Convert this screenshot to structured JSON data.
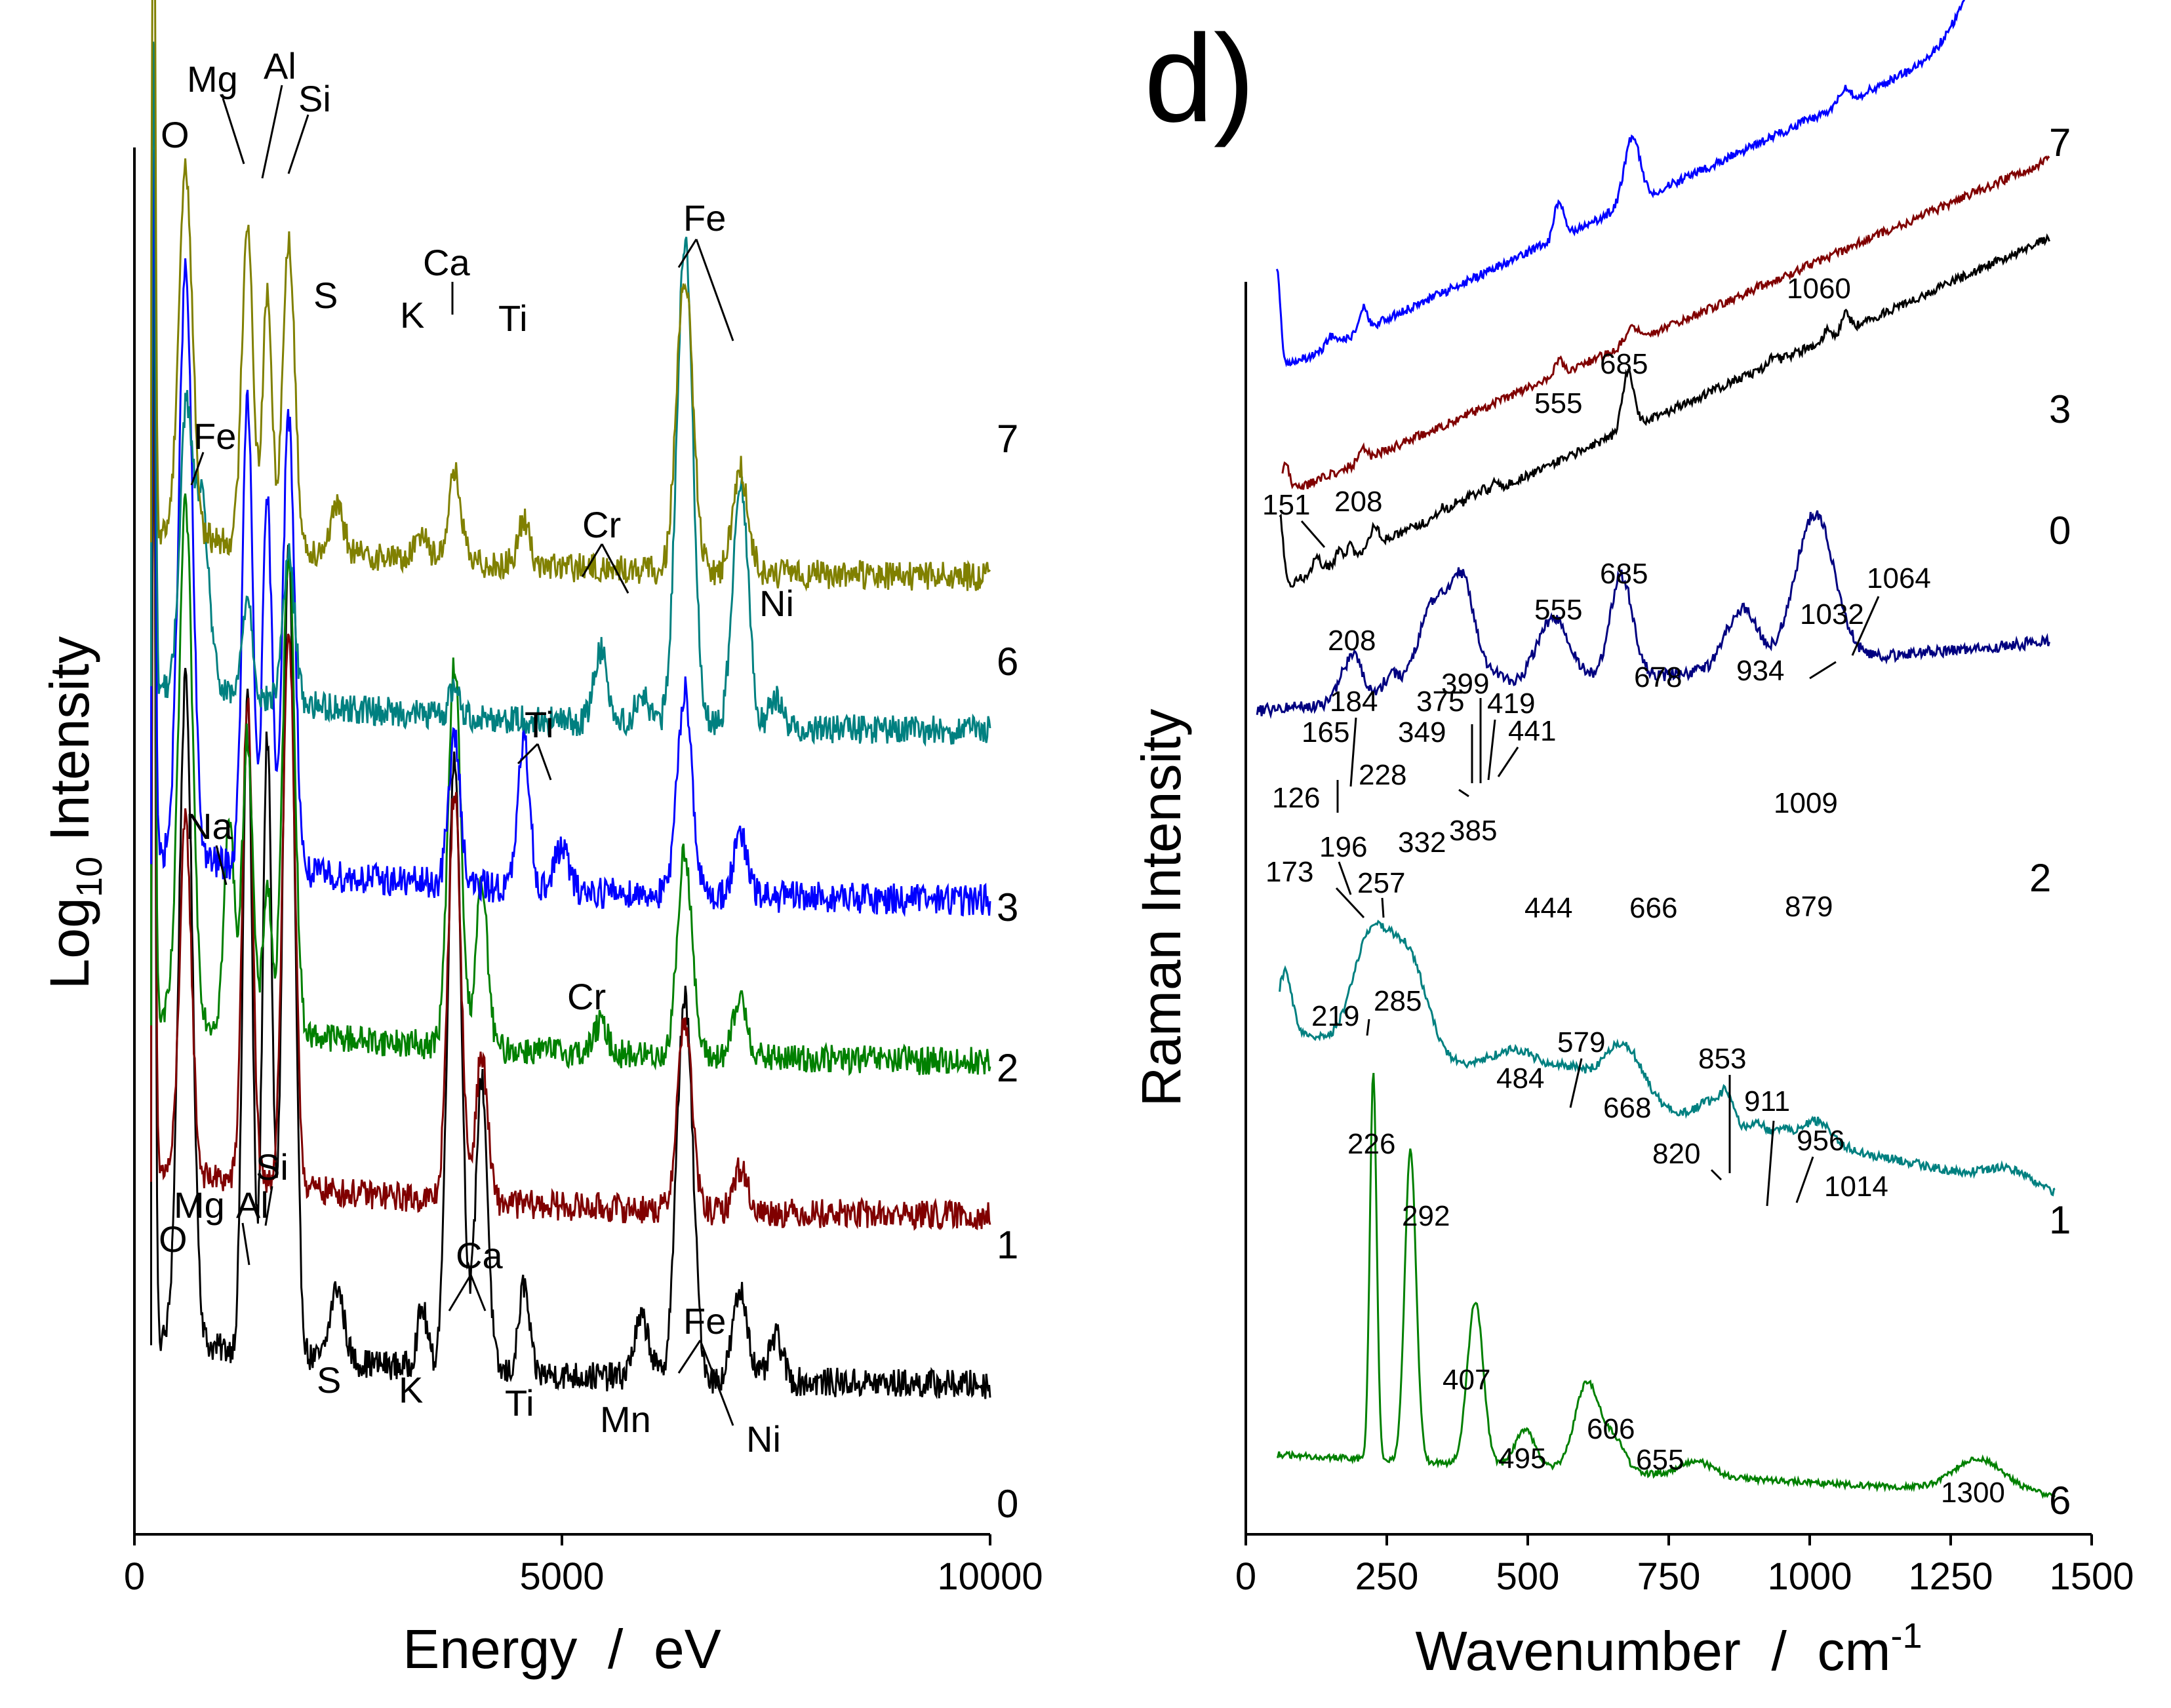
{
  "chart_data": [
    {
      "type": "line",
      "panel_label": "",
      "xlabel": "Energy  /  eV",
      "ylabel_main": "Log",
      "ylabel_sub": "10",
      "ylabel_rest": " Intensity",
      "xlim": [
        0,
        10000
      ],
      "xticks": [
        0,
        5000,
        10000
      ],
      "xtick_labels": [
        "0",
        "5000",
        "10000"
      ],
      "series": [
        {
          "name": "0",
          "color": "#000000",
          "base": 0.1,
          "noise": 0.01,
          "peaks": [
            [
              150,
              0.7,
              20
            ],
            [
              525,
              0.45,
              80
            ],
            [
              1254,
              0.45,
              55
            ],
            [
              1487,
              0.42,
              55
            ],
            [
              1740,
              0.55,
              70
            ],
            [
              2310,
              0.05,
              80
            ],
            [
              3313,
              0.04,
              60
            ],
            [
              3692,
              0.42,
              80
            ],
            [
              4012,
              0.2,
              70
            ],
            [
              4510,
              0.06,
              60
            ],
            [
              5900,
              0.04,
              90
            ],
            [
              6404,
              0.26,
              95
            ],
            [
              7060,
              0.06,
              90
            ],
            [
              7478,
              0.03,
              80
            ]
          ]
        },
        {
          "name": "1",
          "color": "#800000",
          "base": 0.215,
          "noise": 0.01,
          "peaks": [
            [
              150,
              0.55,
              20
            ],
            [
              525,
              0.24,
              70
            ],
            [
              1254,
              0.33,
              60
            ],
            [
              1740,
              0.38,
              70
            ],
            [
              3692,
              0.28,
              75
            ],
            [
              4012,
              0.1,
              70
            ],
            [
              6404,
              0.13,
              85
            ],
            [
              7060,
              0.03,
              80
            ]
          ]
        },
        {
          "name": "2",
          "color": "#008000",
          "base": 0.32,
          "noise": 0.01,
          "peaks": [
            [
              150,
              0.55,
              20
            ],
            [
              525,
              0.35,
              80
            ],
            [
              1041,
              0.14,
              60
            ],
            [
              1254,
              0.2,
              60
            ],
            [
              1487,
              0.1,
              50
            ],
            [
              1740,
              0.33,
              70
            ],
            [
              3692,
              0.26,
              75
            ],
            [
              4012,
              0.11,
              70
            ],
            [
              5415,
              0.02,
              80
            ],
            [
              6404,
              0.14,
              85
            ],
            [
              7060,
              0.04,
              80
            ]
          ]
        },
        {
          "name": "3",
          "color": "#0000ff",
          "base": 0.43,
          "noise": 0.011,
          "peaks": [
            [
              150,
              0.5,
              20
            ],
            [
              525,
              0.4,
              80
            ],
            [
              1254,
              0.32,
              60
            ],
            [
              1487,
              0.25,
              55
            ],
            [
              1740,
              0.31,
              70
            ],
            [
              3692,
              0.1,
              70
            ],
            [
              4510,
              0.1,
              70
            ],
            [
              4952,
              0.03,
              80
            ],
            [
              6404,
              0.14,
              85
            ],
            [
              7060,
              0.04,
              80
            ]
          ]
        },
        {
          "name": "6",
          "color": "#008080",
          "base": 0.545,
          "noise": 0.01,
          "peaks": [
            [
              150,
              0.45,
              20
            ],
            [
              525,
              0.18,
              70
            ],
            [
              710,
              0.13,
              90
            ],
            [
              1254,
              0.07,
              60
            ],
            [
              1740,
              0.1,
              70
            ],
            [
              3692,
              0.02,
              60
            ],
            [
              5415,
              0.05,
              80
            ],
            [
              5900,
              0.02,
              80
            ],
            [
              6404,
              0.33,
              95
            ],
            [
              7060,
              0.17,
              90
            ],
            [
              7478,
              0.02,
              80
            ]
          ]
        },
        {
          "name": "7",
          "color": "#808000",
          "base": 0.65,
          "noise": 0.01,
          "peaks": [
            [
              150,
              0.5,
              20
            ],
            [
              525,
              0.25,
              80
            ],
            [
              1254,
              0.22,
              65
            ],
            [
              1487,
              0.17,
              55
            ],
            [
              1740,
              0.21,
              70
            ],
            [
              2310,
              0.03,
              80
            ],
            [
              3313,
              0.02,
              70
            ],
            [
              3692,
              0.06,
              75
            ],
            [
              4510,
              0.03,
              70
            ],
            [
              6404,
              0.2,
              95
            ],
            [
              7060,
              0.07,
              90
            ]
          ]
        }
      ],
      "end_labels": [
        "7",
        "6",
        "3",
        "2",
        "1",
        "0"
      ],
      "annotations": [
        "O",
        "Mg",
        "Al",
        "Si",
        "S",
        "K",
        "Ca",
        "Ti",
        "Fe",
        "Fe",
        "Cr",
        "Ni",
        "Ti",
        "Na",
        "Cr",
        "O",
        "Mg",
        "Al",
        "Si",
        "S",
        "K",
        "Ca",
        "Ti",
        "Mn",
        "Fe",
        "Ni"
      ]
    },
    {
      "type": "line",
      "panel_label": "d)",
      "xlabel_main": "Wavenumber  /  cm",
      "xlabel_sup": "-1",
      "ylabel": "Raman Intensity",
      "xlim": [
        0,
        1500
      ],
      "xticks": [
        0,
        250,
        500,
        750,
        1000,
        1250,
        1500
      ],
      "xtick_labels": [
        "0",
        "250",
        "500",
        "750",
        "1000",
        "1250",
        "1500"
      ],
      "series": [
        {
          "name": "6",
          "color": "#008000",
          "start": 55,
          "end": 1435,
          "base0": 0.055,
          "slope": -0.03,
          "noise": 0.002,
          "peaks": [
            [
              226,
              0.26,
              6
            ],
            [
              292,
              0.21,
              10
            ],
            [
              407,
              0.11,
              14
            ],
            [
              495,
              0.025,
              18
            ],
            [
              606,
              0.06,
              22
            ],
            [
              655,
              0.02,
              18
            ],
            [
              800,
              0.01,
              30
            ],
            [
              1300,
              0.022,
              45
            ]
          ]
        },
        {
          "name": "1",
          "color": "#008080",
          "start": 60,
          "end": 1435,
          "base0": 0.345,
          "slope": -0.12,
          "noise": 0.003,
          "peaks": [
            [
              70,
              0.04,
              12
            ],
            [
              219,
              0.07,
              30
            ],
            [
              285,
              0.07,
              35
            ],
            [
              484,
              0.02,
              50
            ],
            [
              579,
              0.012,
              30
            ],
            [
              668,
              0.04,
              35
            ],
            [
              820,
              0.012,
              20
            ],
            [
              853,
              0.02,
              12
            ],
            [
              911,
              0.005,
              10
            ],
            [
              956,
              0.005,
              12
            ],
            [
              1014,
              0.015,
              25
            ],
            [
              1350,
              0.01,
              40
            ]
          ]
        },
        {
          "name": "2",
          "color": "#000080",
          "start": 20,
          "end": 1425,
          "base0": 0.555,
          "slope": 0.05,
          "noise": 0.004,
          "peaks": [
            [
              173,
              0.015,
              15
            ],
            [
              196,
              0.025,
              15
            ],
            [
              257,
              0.015,
              15
            ],
            [
              332,
              0.06,
              28
            ],
            [
              385,
              0.07,
              22
            ],
            [
              444,
              0.01,
              20
            ],
            [
              545,
              0.045,
              30
            ],
            [
              666,
              0.07,
              20
            ],
            [
              879,
              0.04,
              28
            ],
            [
              1009,
              0.1,
              35
            ]
          ]
        },
        {
          "name": "0",
          "color": "#000000",
          "start": 60,
          "end": 1425,
          "base0": 0.628,
          "slope": 0.26,
          "noise": 0.003,
          "peaks": [
            [
              60,
              0.05,
              6
            ],
            [
              126,
              0.01,
              6
            ],
            [
              165,
              0.008,
              5
            ],
            [
              184,
              0.008,
              5
            ],
            [
              228,
              0.012,
              8
            ],
            [
              349,
              0.005,
              6
            ],
            [
              375,
              0.005,
              6
            ],
            [
              399,
              0.005,
              6
            ],
            [
              419,
              0.005,
              6
            ],
            [
              441,
              0.005,
              6
            ],
            [
              678,
              0.04,
              10
            ],
            [
              934,
              0.004,
              8
            ],
            [
              1032,
              0.008,
              6
            ],
            [
              1064,
              0.012,
              7
            ]
          ]
        },
        {
          "name": "3",
          "color": "#800000",
          "start": 65,
          "end": 1425,
          "base0": 0.69,
          "slope": 0.25,
          "noise": 0.003,
          "peaks": [
            [
              70,
              0.02,
              8
            ],
            [
              208,
              0.008,
              7
            ],
            [
              555,
              0.01,
              8
            ],
            [
              685,
              0.01,
              12
            ]
          ]
        },
        {
          "name": "7",
          "color": "#0000ff",
          "start": 55,
          "end": 1355,
          "base0": 0.775,
          "slope": 0.27,
          "noise": 0.003,
          "peaks": [
            [
              55,
              0.07,
              6
            ],
            [
              151,
              0.006,
              8
            ],
            [
              208,
              0.015,
              7
            ],
            [
              555,
              0.025,
              8
            ],
            [
              685,
              0.045,
              14
            ],
            [
              1060,
              0.01,
              10
            ],
            [
              1355,
              0.08,
              60
            ]
          ]
        }
      ],
      "end_labels": [
        "7",
        "3",
        "0",
        "2",
        "1",
        "6"
      ],
      "annotations": [
        "151",
        "208",
        "555",
        "685",
        "1060",
        "208",
        "555",
        "685",
        "1032",
        "1064",
        "126",
        "165",
        "184",
        "228",
        "349",
        "375",
        "399",
        "419",
        "441",
        "678",
        "934",
        "173",
        "196",
        "257",
        "332",
        "385",
        "444",
        "666",
        "879",
        "1009",
        "219",
        "285",
        "484",
        "579",
        "668",
        "820",
        "853",
        "911",
        "956",
        "1014",
        "226",
        "292",
        "407",
        "495",
        "606",
        "655",
        "1300"
      ]
    }
  ]
}
